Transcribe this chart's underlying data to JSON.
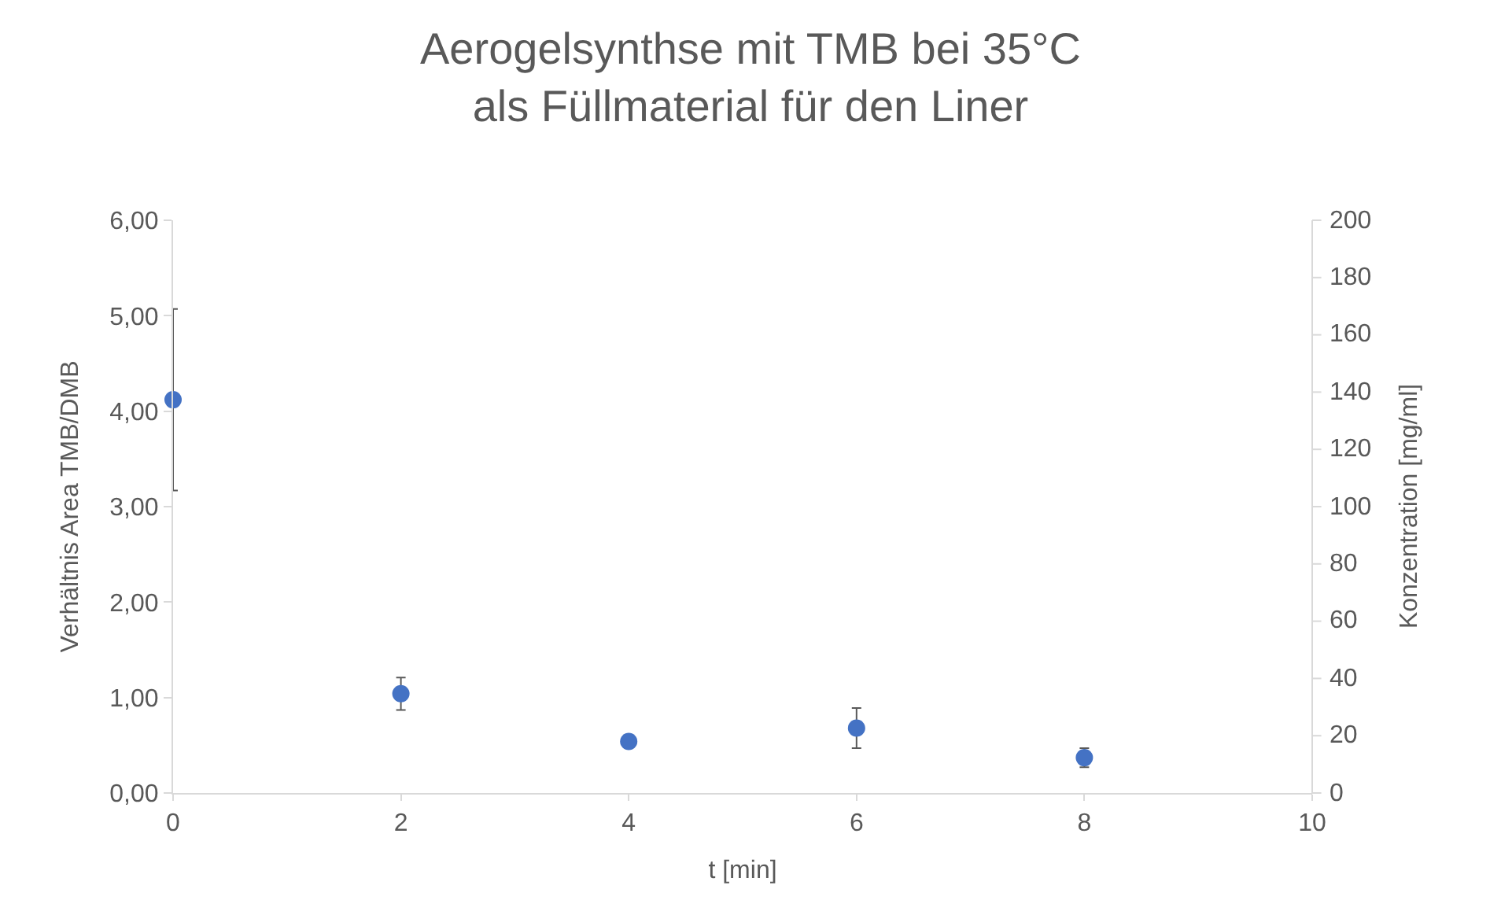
{
  "chart_data": {
    "type": "scatter",
    "title": "Aerogelsynthse mit TMB bei 35°C als Füllmaterial für den Liner",
    "xlabel": "t [min]",
    "ylabel": "Verhältnis Area TMB/DMB",
    "y2label": "Konzentration [mg/ml]",
    "x": [
      0,
      2,
      4,
      6,
      8
    ],
    "series": [
      {
        "color": "#4472c4",
        "values": [
          4.12,
          1.04,
          0.54,
          0.68,
          0.37
        ],
        "errors": [
          0.95,
          0.17,
          null,
          0.21,
          0.1
        ]
      }
    ],
    "xlim": [
      0,
      10
    ],
    "xticks": [
      0,
      2,
      4,
      6,
      8,
      10
    ],
    "ylim": [
      0,
      6
    ],
    "yticks": [
      {
        "value": 0,
        "label": "0,00"
      },
      {
        "value": 1,
        "label": "1,00"
      },
      {
        "value": 2,
        "label": "2,00"
      },
      {
        "value": 3,
        "label": "3,00"
      },
      {
        "value": 4,
        "label": "4,00"
      },
      {
        "value": 5,
        "label": "5,00"
      },
      {
        "value": 6,
        "label": "6,00"
      }
    ],
    "y2lim": [
      0,
      200
    ],
    "y2ticks": [
      0,
      20,
      40,
      60,
      80,
      100,
      120,
      140,
      160,
      180,
      200
    ],
    "marker": "circle"
  }
}
